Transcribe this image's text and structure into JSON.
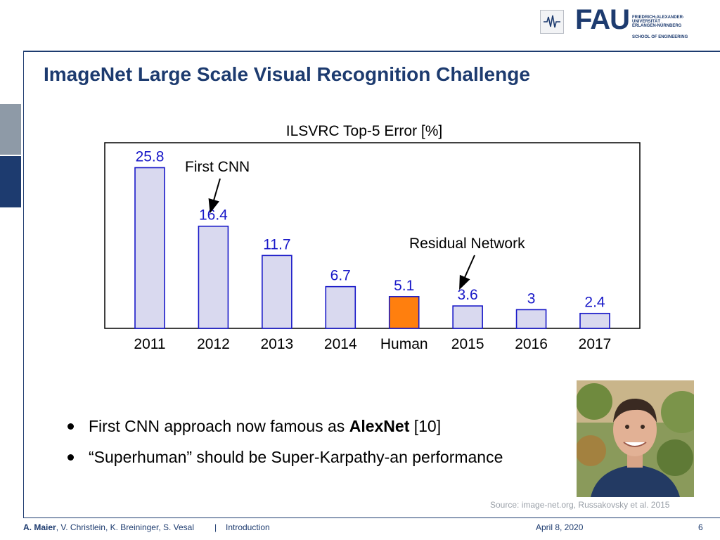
{
  "header": {
    "logo_word": "FAU",
    "logo_lines": [
      "FRIEDRICH-ALEXANDER-",
      "UNIVERSITÄT",
      "ERLANGEN-NÜRNBERG"
    ],
    "logo_school": "SCHOOL OF ENGINEERING"
  },
  "title": "ImageNet Large Scale Visual Recognition Challenge",
  "chart_data": {
    "type": "bar",
    "title": "ILSVRC Top-5 Error [%]",
    "categories": [
      "2011",
      "2012",
      "2013",
      "2014",
      "Human",
      "2015",
      "2016",
      "2017"
    ],
    "values": [
      25.8,
      16.4,
      11.7,
      6.7,
      5.1,
      3.6,
      3,
      2.4
    ],
    "value_labels": [
      "25.8",
      "16.4",
      "11.7",
      "6.7",
      "5.1",
      "3.6",
      "3",
      "2.4"
    ],
    "highlight_category": "Human",
    "colors": {
      "bar": "#d9d9ef",
      "bar_edge": "#1818c8",
      "highlight": "#ff7f0e",
      "highlight_edge": "#1818c8",
      "label": "#1818c8"
    },
    "annotations": [
      {
        "text": "First CNN",
        "target": "2012"
      },
      {
        "text": "Residual Network",
        "target": "2015"
      }
    ],
    "ylim": [
      0,
      28
    ],
    "grid": false,
    "legend": "none"
  },
  "bullets": [
    {
      "before": "First CNN approach now famous as ",
      "bold": "AlexNet",
      "after": " [10]"
    },
    {
      "text": "“Superhuman” should be Super-Karpathy-an performance"
    }
  ],
  "source": "Source: image-net.org, Russakovsky et al. 2015",
  "footer": {
    "author_bold": "A. Maier",
    "authors_rest": ", V. Christlein, K. Breininger, S. Vesal",
    "separator": "|",
    "section": "Introduction",
    "date": "April 8, 2020",
    "page": "6"
  }
}
